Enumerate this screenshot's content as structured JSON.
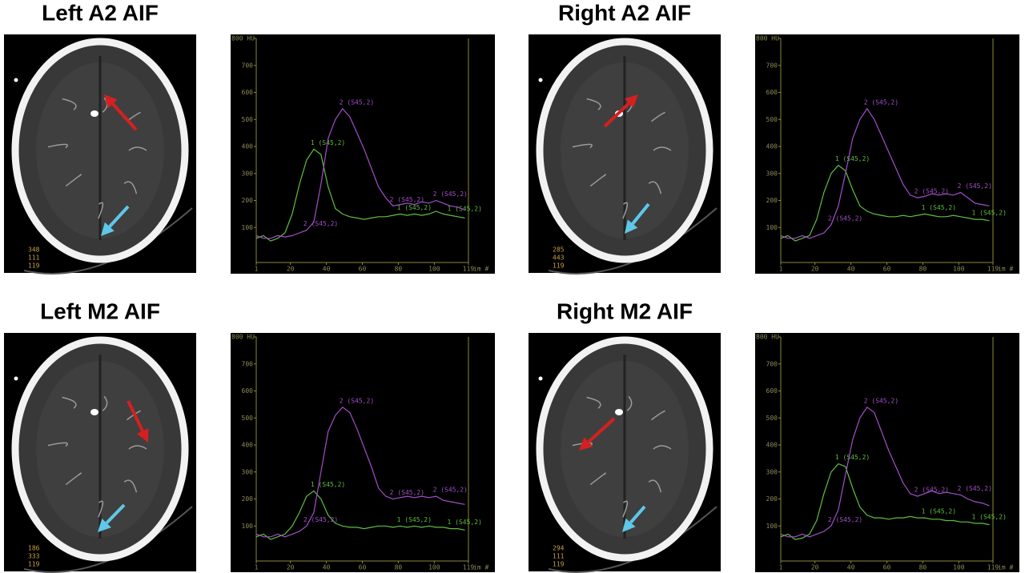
{
  "chart_data": [
    {
      "type": "line",
      "title": "Left A2 AIF",
      "x": [
        1,
        5,
        9,
        13,
        17,
        21,
        25,
        29,
        33,
        37,
        41,
        45,
        49,
        53,
        57,
        61,
        65,
        69,
        73,
        77,
        81,
        85,
        89,
        93,
        97,
        101,
        105,
        109,
        113,
        117
      ],
      "series": [
        {
          "name": "1 (S45,2)",
          "color": "#5fbf3f",
          "values": [
            60,
            70,
            50,
            60,
            80,
            150,
            260,
            350,
            390,
            370,
            250,
            170,
            150,
            140,
            135,
            130,
            135,
            140,
            140,
            145,
            150,
            145,
            150,
            145,
            150,
            160,
            150,
            145,
            140,
            135
          ]
        },
        {
          "name": "2 (S45,2)",
          "color": "#a34fc9",
          "values": [
            70,
            60,
            60,
            70,
            65,
            70,
            80,
            90,
            120,
            260,
            430,
            500,
            540,
            510,
            450,
            390,
            320,
            250,
            210,
            180,
            185,
            190,
            185,
            195,
            190,
            200,
            190,
            180,
            175,
            165
          ]
        }
      ],
      "xlim": [
        1,
        119
      ],
      "xticks": [
        1,
        20,
        40,
        60,
        80,
        100,
        119
      ],
      "x_label": "im #",
      "ylim": [
        0,
        800
      ],
      "yticks": [
        100,
        200,
        300,
        400,
        500,
        600,
        700,
        {
          "value": 800,
          "label": "800 HU"
        }
      ]
    },
    {
      "type": "line",
      "title": "Right A2 AIF",
      "x": [
        1,
        5,
        9,
        13,
        17,
        21,
        25,
        29,
        33,
        37,
        41,
        45,
        49,
        53,
        57,
        61,
        65,
        69,
        73,
        77,
        81,
        85,
        89,
        93,
        97,
        101,
        105,
        109,
        113,
        117
      ],
      "series": [
        {
          "name": "1 (S45,2)",
          "color": "#5fbf3f",
          "values": [
            60,
            70,
            50,
            60,
            70,
            130,
            230,
            300,
            330,
            310,
            240,
            180,
            160,
            150,
            145,
            140,
            140,
            145,
            140,
            145,
            150,
            145,
            140,
            140,
            145,
            140,
            135,
            130,
            130,
            125
          ]
        },
        {
          "name": "2 (S45,2)",
          "color": "#a34fc9",
          "values": [
            70,
            60,
            60,
            70,
            60,
            70,
            80,
            110,
            180,
            300,
            430,
            500,
            540,
            500,
            440,
            380,
            320,
            260,
            220,
            210,
            215,
            225,
            220,
            225,
            220,
            230,
            210,
            190,
            185,
            180
          ]
        }
      ],
      "xlim": [
        1,
        119
      ],
      "xticks": [
        1,
        20,
        40,
        60,
        80,
        100,
        119
      ],
      "x_label": "im #",
      "ylim": [
        0,
        800
      ],
      "yticks": [
        100,
        200,
        300,
        400,
        500,
        600,
        700,
        {
          "value": 800,
          "label": "800 HU"
        }
      ]
    },
    {
      "type": "line",
      "title": "Left M2 AIF",
      "x": [
        1,
        5,
        9,
        13,
        17,
        21,
        25,
        29,
        33,
        37,
        41,
        45,
        49,
        53,
        57,
        61,
        65,
        69,
        73,
        77,
        81,
        85,
        89,
        93,
        97,
        101,
        105,
        109,
        113,
        117
      ],
      "series": [
        {
          "name": "1 (S45,2)",
          "color": "#5fbf3f",
          "values": [
            60,
            70,
            50,
            60,
            70,
            100,
            150,
            210,
            230,
            200,
            140,
            110,
            100,
            95,
            95,
            90,
            95,
            100,
            100,
            95,
            100,
            95,
            100,
            95,
            100,
            95,
            95,
            90,
            90,
            85
          ]
        },
        {
          "name": "2 (S45,2)",
          "color": "#a34fc9",
          "values": [
            70,
            60,
            60,
            70,
            60,
            70,
            80,
            100,
            150,
            300,
            450,
            510,
            540,
            520,
            460,
            390,
            320,
            240,
            210,
            200,
            205,
            210,
            205,
            210,
            205,
            210,
            195,
            190,
            185,
            180
          ]
        }
      ],
      "xlim": [
        1,
        119
      ],
      "xticks": [
        1,
        20,
        40,
        60,
        80,
        100,
        119
      ],
      "x_label": "im #",
      "ylim": [
        0,
        800
      ],
      "yticks": [
        100,
        200,
        300,
        400,
        500,
        600,
        700,
        {
          "value": 800,
          "label": "800 HU"
        }
      ]
    },
    {
      "type": "line",
      "title": "Right M2 AIF",
      "x": [
        1,
        5,
        9,
        13,
        17,
        21,
        25,
        29,
        33,
        37,
        41,
        45,
        49,
        53,
        57,
        61,
        65,
        69,
        73,
        77,
        81,
        85,
        89,
        93,
        97,
        101,
        105,
        109,
        113,
        117
      ],
      "series": [
        {
          "name": "1 (S45,2)",
          "color": "#5fbf3f",
          "values": [
            60,
            70,
            50,
            55,
            70,
            120,
            220,
            300,
            330,
            320,
            240,
            170,
            140,
            130,
            130,
            125,
            130,
            130,
            135,
            130,
            130,
            125,
            125,
            120,
            120,
            115,
            115,
            110,
            110,
            105
          ]
        },
        {
          "name": "2 (S45,2)",
          "color": "#a34fc9",
          "values": [
            70,
            60,
            60,
            70,
            60,
            70,
            80,
            100,
            160,
            290,
            420,
            500,
            540,
            520,
            450,
            380,
            320,
            260,
            220,
            210,
            220,
            230,
            220,
            225,
            220,
            215,
            200,
            190,
            185,
            175
          ]
        }
      ],
      "xlim": [
        1,
        119
      ],
      "xticks": [
        1,
        20,
        40,
        60,
        80,
        100,
        119
      ],
      "x_label": "im #",
      "ylim": [
        0,
        800
      ],
      "yticks": [
        100,
        200,
        300,
        400,
        500,
        600,
        700,
        {
          "value": 800,
          "label": "800 HU"
        }
      ]
    }
  ],
  "ct_labels": [
    [
      "348",
      "111",
      "119"
    ],
    [
      "285",
      "443",
      "119"
    ],
    [
      "186",
      "333",
      "119"
    ],
    [
      "294",
      "111",
      "119"
    ]
  ]
}
